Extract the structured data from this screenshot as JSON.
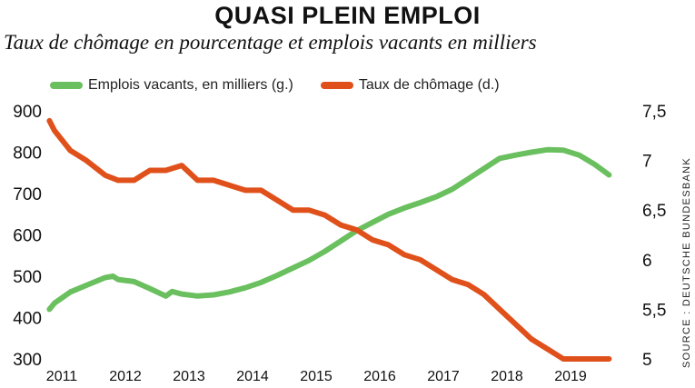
{
  "title": "QUASI PLEIN EMPLOI",
  "subtitle": "Taux de chômage en pourcentage et emplois vacants en milliers",
  "source": "SOURCE : DEUTSCHE BUNDESBANK",
  "colors": {
    "vacancies": "#6abf5e",
    "unemployment": "#e0501b"
  },
  "chart_data": {
    "type": "line",
    "legend_position": "top-left",
    "grid": false,
    "x_ticks": [
      "2011",
      "2012",
      "2013",
      "2014",
      "2015",
      "2016",
      "2017",
      "2018",
      "2019"
    ],
    "y_left": {
      "ticks": [
        "300",
        "400",
        "500",
        "600",
        "700",
        "800",
        "900"
      ],
      "range": [
        300,
        900
      ]
    },
    "y_right": {
      "ticks": [
        "5",
        "5,5",
        "6",
        "6,5",
        "7",
        "7,5"
      ],
      "range": [
        5,
        7.5
      ]
    },
    "series": [
      {
        "name": "Emplois vacants, en milliers (g.)",
        "axis": "left",
        "x": [
          2010.92,
          2011.0,
          2011.25,
          2011.5,
          2011.8,
          2011.92,
          2012.0,
          2012.25,
          2012.5,
          2012.75,
          2012.85,
          2013.0,
          2013.25,
          2013.5,
          2013.75,
          2014.0,
          2014.25,
          2014.5,
          2014.75,
          2015.0,
          2015.25,
          2015.5,
          2015.75,
          2016.0,
          2016.25,
          2016.5,
          2016.75,
          2017.0,
          2017.25,
          2017.5,
          2017.75,
          2018.0,
          2018.25,
          2018.5,
          2018.75,
          2019.0,
          2019.25,
          2019.5,
          2019.72
        ],
        "values": [
          420,
          435,
          462,
          478,
          497,
          500,
          492,
          487,
          470,
          452,
          463,
          457,
          452,
          455,
          462,
          472,
          485,
          502,
          520,
          538,
          560,
          585,
          610,
          630,
          650,
          665,
          678,
          692,
          710,
          735,
          760,
          785,
          793,
          800,
          806,
          805,
          793,
          770,
          745
        ]
      },
      {
        "name": "Taux de chômage (d.)",
        "axis": "right",
        "x": [
          2010.92,
          2011.0,
          2011.25,
          2011.5,
          2011.8,
          2012.0,
          2012.25,
          2012.5,
          2012.75,
          2013.0,
          2013.25,
          2013.5,
          2013.75,
          2014.0,
          2014.25,
          2014.5,
          2014.75,
          2015.0,
          2015.25,
          2015.5,
          2015.75,
          2016.0,
          2016.25,
          2016.5,
          2016.75,
          2017.0,
          2017.25,
          2017.5,
          2017.75,
          2018.0,
          2018.25,
          2018.5,
          2018.75,
          2019.0,
          2019.25,
          2019.5,
          2019.72
        ],
        "values": [
          7.4,
          7.3,
          7.1,
          7.0,
          6.85,
          6.8,
          6.8,
          6.9,
          6.9,
          6.95,
          6.8,
          6.8,
          6.75,
          6.7,
          6.7,
          6.6,
          6.5,
          6.5,
          6.45,
          6.35,
          6.3,
          6.2,
          6.15,
          6.05,
          6.0,
          5.9,
          5.8,
          5.75,
          5.65,
          5.5,
          5.35,
          5.2,
          5.1,
          5.0,
          5.0,
          5.0,
          5.0
        ]
      }
    ]
  }
}
